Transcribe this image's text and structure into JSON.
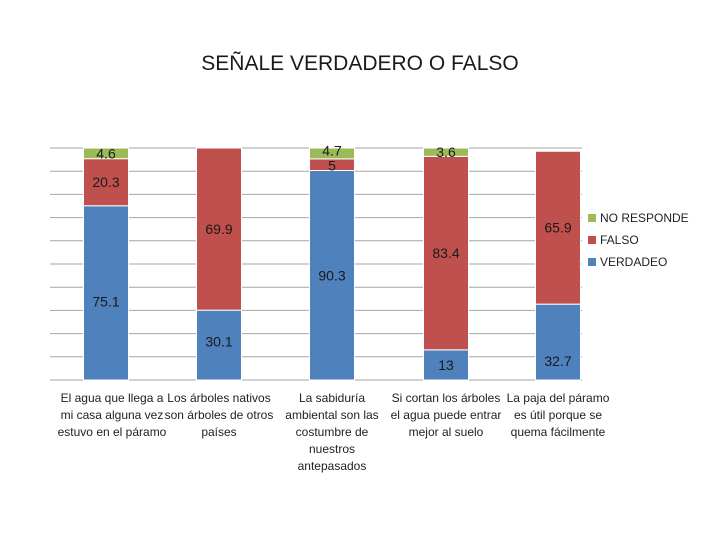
{
  "chart_data": {
    "type": "bar",
    "stacked": true,
    "title": "SEÑALE VERDADERO O FALSO",
    "categories": [
      "El agua que llega a mi casa alguna vez estuvo en el páramo",
      "Los árboles nativos son árboles de otros países",
      "La sabiduría ambiental son las costumbre de nuestros antepasados",
      "Si cortan los árboles el agua puede entrar mejor al suelo",
      "La paja del páramo es útil porque se quema fácilmente"
    ],
    "series": [
      {
        "name": "VERDADEO",
        "color": "#4f81bd",
        "values": [
          75.1,
          30.1,
          90.3,
          13,
          32.7
        ],
        "labels": [
          "75.1",
          "30.1",
          "90.3",
          "13",
          "32.7"
        ]
      },
      {
        "name": "FALSO",
        "color": "#c0504d",
        "values": [
          20.3,
          69.9,
          5,
          83.4,
          65.9
        ],
        "labels": [
          "20.3",
          "69.9",
          "5",
          "83.4",
          "65.9"
        ]
      },
      {
        "name": "NO RESPONDE",
        "color": "#9bbb59",
        "values": [
          4.6,
          0,
          4.7,
          3.6,
          0
        ],
        "labels": [
          "4.6",
          "",
          "4.7",
          "3.6",
          ""
        ]
      }
    ],
    "ylim": [
      0,
      100
    ],
    "grid": true,
    "legend_position": "right"
  }
}
